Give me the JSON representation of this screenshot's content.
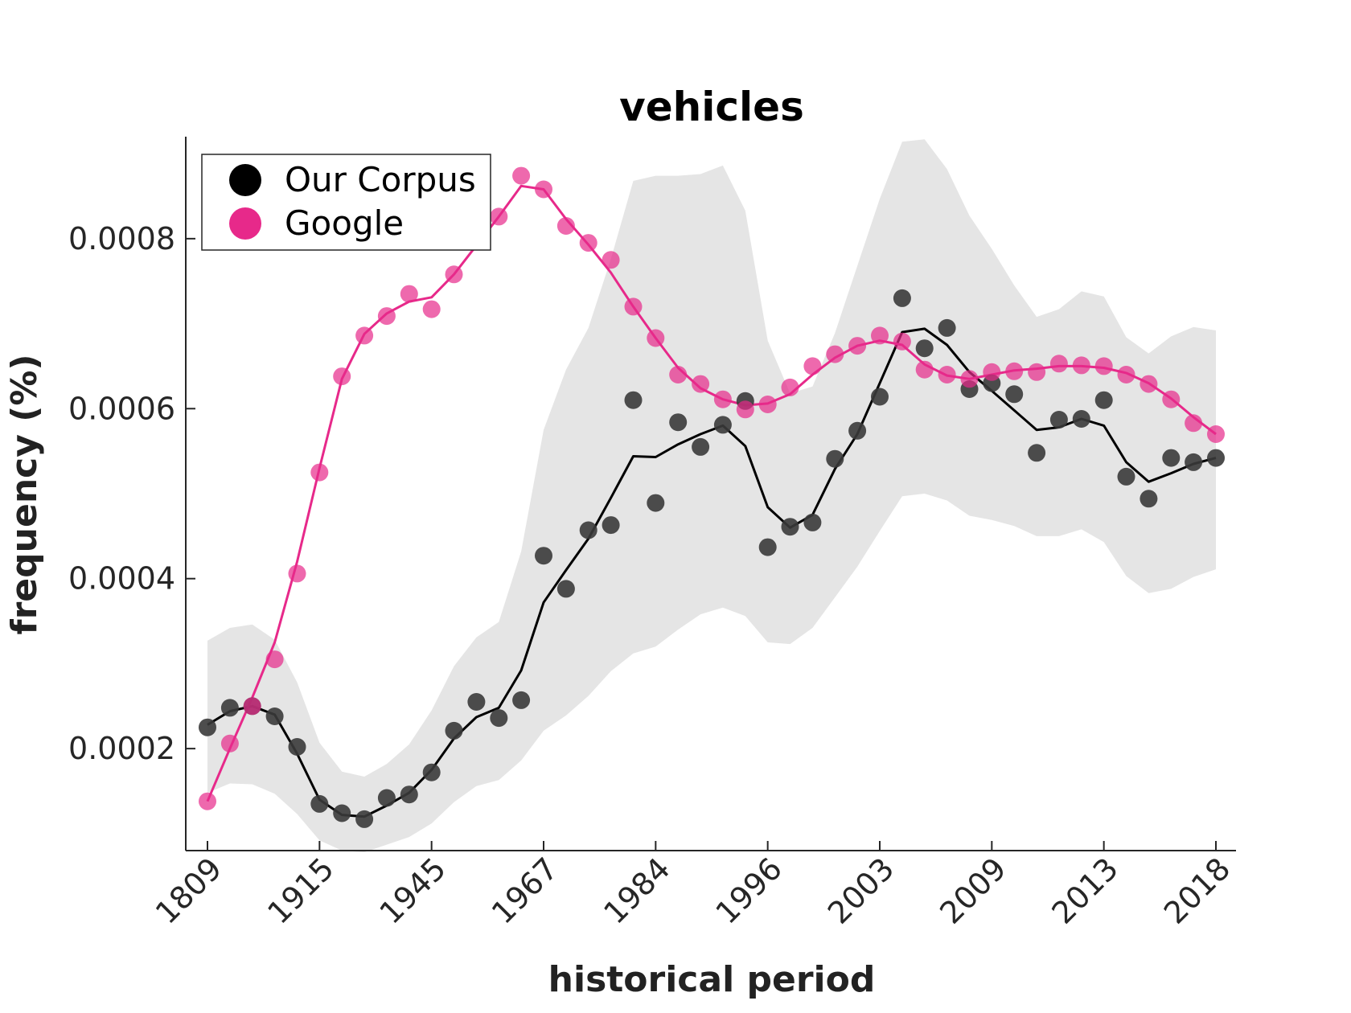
{
  "chart_data": {
    "type": "scatter",
    "title": "vehicles",
    "xlabel": "historical period",
    "ylabel": "frequency (%)",
    "x_tick_labels": [
      "1809",
      "1915",
      "1945",
      "1967",
      "1984",
      "1996",
      "2003",
      "2009",
      "2013",
      "2018"
    ],
    "y_ticks": [
      0.0002,
      0.0004,
      0.0006,
      0.0008
    ],
    "y_tick_labels": [
      "0.0002",
      "0.0004",
      "0.0006",
      "0.0008"
    ],
    "ylim": [
      8e-05,
      0.00092
    ],
    "n_points": 46,
    "legend": {
      "position": "top-left",
      "entries": [
        {
          "label": "Our Corpus",
          "color": "#000000"
        },
        {
          "label": "Google",
          "color": "#e7298a"
        }
      ]
    },
    "series": [
      {
        "name": "Our Corpus",
        "color": "#3a3a3a",
        "points": [
          0.000225,
          0.000248,
          0.00025,
          0.000238,
          0.000202,
          0.000135,
          0.000124,
          0.000117,
          0.000142,
          0.000146,
          0.000172,
          0.000221,
          0.000255,
          0.000236,
          0.000257,
          0.000427,
          0.000388,
          0.000457,
          0.000463,
          0.00061,
          0.000489,
          0.000584,
          0.000555,
          0.000581,
          0.000609,
          0.000437,
          0.000461,
          0.000466,
          0.000541,
          0.000574,
          0.000614,
          0.00073,
          0.000671,
          0.000695,
          0.000623,
          0.00063,
          0.000617,
          0.000548,
          0.000587,
          0.000588,
          0.00061,
          0.00052,
          0.000494,
          0.000542,
          0.000537,
          0.000542
        ],
        "smoothed": [
          0.000228,
          0.000244,
          0.00025,
          0.00024,
          0.000194,
          0.00014,
          0.000122,
          0.00012,
          0.000133,
          0.000148,
          0.000175,
          0.000212,
          0.000237,
          0.000248,
          0.000292,
          0.000372,
          0.00041,
          0.000447,
          0.000495,
          0.000544,
          0.000543,
          0.000558,
          0.00057,
          0.00058,
          0.000556,
          0.000484,
          0.00046,
          0.000475,
          0.000529,
          0.00057,
          0.00063,
          0.00069,
          0.000694,
          0.000675,
          0.000643,
          0.000621,
          0.000598,
          0.000575,
          0.000578,
          0.000588,
          0.00058,
          0.000537,
          0.000514,
          0.000524,
          0.000535,
          0.000542
        ]
      },
      {
        "name": "Google",
        "color": "#e7298a",
        "points": [
          0.000138,
          0.000206,
          0.00025,
          0.000305,
          0.000406,
          0.000525,
          0.000638,
          0.000686,
          0.000709,
          0.000735,
          0.000717,
          0.000758,
          0.000797,
          0.000826,
          0.000874,
          0.000858,
          0.000815,
          0.000795,
          0.000775,
          0.00072,
          0.000683,
          0.00064,
          0.000629,
          0.000611,
          0.000599,
          0.000605,
          0.000625,
          0.00065,
          0.000664,
          0.000674,
          0.000686,
          0.000679,
          0.000646,
          0.00064,
          0.000635,
          0.000643,
          0.000644,
          0.000643,
          0.000653,
          0.000651,
          0.00065,
          0.00064,
          0.000629,
          0.000611,
          0.000583,
          0.00057
        ],
        "smoothed": [
          0.000138,
          0.0002,
          0.00026,
          0.000325,
          0.00042,
          0.00053,
          0.000635,
          0.000688,
          0.000712,
          0.000726,
          0.000731,
          0.000758,
          0.000792,
          0.000826,
          0.000862,
          0.000858,
          0.000823,
          0.000793,
          0.00076,
          0.00072,
          0.000683,
          0.000648,
          0.000624,
          0.000611,
          0.000604,
          0.000606,
          0.000617,
          0.00064,
          0.00066,
          0.000674,
          0.00068,
          0.000675,
          0.000652,
          0.000639,
          0.000635,
          0.00064,
          0.000645,
          0.000647,
          0.00065,
          0.00065,
          0.000648,
          0.000642,
          0.00063,
          0.000612,
          0.00059,
          0.00057
        ]
      }
    ],
    "band": {
      "upper": [
        0.000327,
        0.000342,
        0.000346,
        0.000328,
        0.000278,
        0.000207,
        0.000173,
        0.000167,
        0.000182,
        0.000205,
        0.000245,
        0.000297,
        0.000331,
        0.000349,
        0.000432,
        0.000575,
        0.000646,
        0.000695,
        0.000776,
        0.000868,
        0.000874,
        0.000874,
        0.000876,
        0.000886,
        0.000833,
        0.00068,
        0.000618,
        0.000626,
        0.000689,
        0.000768,
        0.000847,
        0.000914,
        0.000917,
        0.000882,
        0.000827,
        0.000788,
        0.000745,
        0.000708,
        0.000717,
        0.000738,
        0.000732,
        0.000684,
        0.000665,
        0.000685,
        0.000696,
        0.000692
      ],
      "lower": [
        0.000148,
        0.000159,
        0.000158,
        0.000147,
        0.000123,
        9.2e-05,
        8e-05,
        7.8e-05,
        8.7e-05,
        9.6e-05,
        0.000112,
        0.000137,
        0.000156,
        0.000163,
        0.000186,
        0.000221,
        0.000239,
        0.000262,
        0.000291,
        0.000312,
        0.00032,
        0.00034,
        0.000358,
        0.000366,
        0.000356,
        0.000325,
        0.000323,
        0.000342,
        0.000378,
        0.000414,
        0.000456,
        0.000497,
        0.0005,
        0.000492,
        0.000474,
        0.000469,
        0.000462,
        0.00045,
        0.00045,
        0.000458,
        0.000443,
        0.000403,
        0.000383,
        0.000388,
        0.000402,
        0.000411
      ],
      "color": "#e5e5e5"
    },
    "colors": {
      "corpus_marker": "#3a3a3a",
      "corpus_line": "#000000",
      "google": "#e7298a",
      "band": "#e5e5e5"
    }
  }
}
